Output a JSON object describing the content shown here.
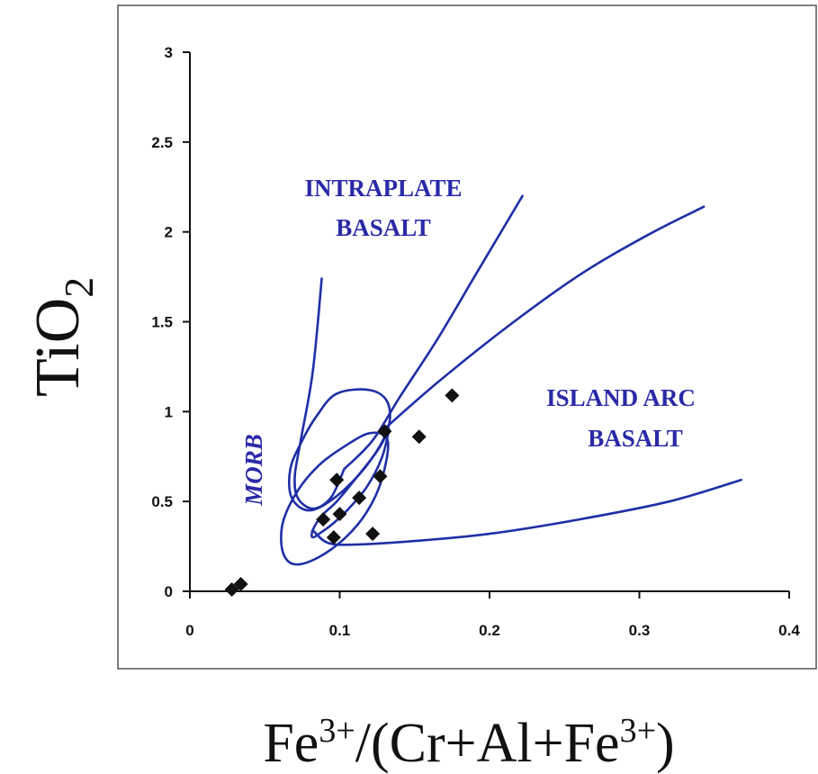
{
  "chart_data": {
    "type": "scatter",
    "xlabel": "Fe3+/(Cr+Al+Fe3+)",
    "xlabel_parts": {
      "a": "Fe",
      "sup1": "3+",
      "b": "/(Cr+Al+Fe",
      "sup2": "3+",
      "c": ")"
    },
    "ylabel": "TiO2",
    "ylabel_parts": {
      "a": "TiO",
      "sub": "2"
    },
    "xlim": [
      0,
      0.4
    ],
    "ylim": [
      0,
      3
    ],
    "x_ticks": [
      "0",
      "0.1",
      "0.2",
      "0.3",
      "0.4"
    ],
    "y_ticks": [
      "0",
      "0.5",
      "1",
      "1.5",
      "2",
      "2.5",
      "3"
    ],
    "grid": false,
    "field_labels": [
      {
        "lines": [
          "INTRAPLATE",
          "BASALT"
        ]
      },
      {
        "lines": [
          "ISLAND ARC",
          "BASALT"
        ]
      },
      {
        "lines": [
          "MORB"
        ]
      }
    ],
    "series": [
      {
        "points": [
          {
            "x": 0.028,
            "y": 0.01
          },
          {
            "x": 0.034,
            "y": 0.04
          },
          {
            "x": 0.089,
            "y": 0.4
          },
          {
            "x": 0.096,
            "y": 0.3
          },
          {
            "x": 0.098,
            "y": 0.62
          },
          {
            "x": 0.1,
            "y": 0.43
          },
          {
            "x": 0.113,
            "y": 0.52
          },
          {
            "x": 0.122,
            "y": 0.32
          },
          {
            "x": 0.127,
            "y": 0.64
          },
          {
            "x": 0.13,
            "y": 0.89
          },
          {
            "x": 0.153,
            "y": 0.86
          },
          {
            "x": 0.175,
            "y": 1.09
          }
        ]
      }
    ],
    "boundaries": [
      {
        "name": "intraplate-ellipse",
        "closed": true,
        "points": [
          [
            0.098,
            1.1
          ],
          [
            0.12,
            1.12
          ],
          [
            0.132,
            1.05
          ],
          [
            0.132,
            0.9
          ],
          [
            0.118,
            0.7
          ],
          [
            0.098,
            0.53
          ],
          [
            0.08,
            0.45
          ],
          [
            0.068,
            0.52
          ],
          [
            0.067,
            0.68
          ],
          [
            0.075,
            0.84
          ],
          [
            0.085,
            0.98
          ]
        ]
      },
      {
        "name": "morb-loop",
        "closed": true,
        "points": [
          [
            0.132,
            0.84
          ],
          [
            0.128,
            0.62
          ],
          [
            0.118,
            0.44
          ],
          [
            0.104,
            0.3
          ],
          [
            0.086,
            0.19
          ],
          [
            0.07,
            0.15
          ],
          [
            0.062,
            0.22
          ],
          [
            0.062,
            0.38
          ],
          [
            0.072,
            0.56
          ],
          [
            0.086,
            0.7
          ],
          [
            0.102,
            0.8
          ],
          [
            0.12,
            0.88
          ]
        ]
      },
      {
        "name": "intraplate-left-arm",
        "closed": false,
        "points": [
          [
            0.088,
            1.74
          ],
          [
            0.082,
            1.22
          ],
          [
            0.074,
            0.84
          ],
          [
            0.07,
            0.64
          ],
          [
            0.072,
            0.52
          ],
          [
            0.082,
            0.46
          ],
          [
            0.094,
            0.52
          ],
          [
            0.103,
            0.68
          ]
        ]
      },
      {
        "name": "intraplate-right-arm",
        "closed": false,
        "points": [
          [
            0.103,
            0.68
          ],
          [
            0.122,
            0.84
          ],
          [
            0.14,
            1.08
          ],
          [
            0.165,
            1.4
          ],
          [
            0.192,
            1.78
          ],
          [
            0.222,
            2.2
          ]
        ]
      },
      {
        "name": "island-arc-upper",
        "closed": false,
        "points": [
          [
            0.132,
            0.92
          ],
          [
            0.165,
            1.16
          ],
          [
            0.21,
            1.46
          ],
          [
            0.26,
            1.76
          ],
          [
            0.305,
            1.98
          ],
          [
            0.343,
            2.14
          ]
        ]
      },
      {
        "name": "inner-loop",
        "closed": false,
        "points": [
          [
            0.133,
            0.9
          ],
          [
            0.128,
            0.74
          ],
          [
            0.118,
            0.58
          ],
          [
            0.106,
            0.46
          ],
          [
            0.096,
            0.38
          ],
          [
            0.088,
            0.33
          ],
          [
            0.082,
            0.3
          ],
          [
            0.082,
            0.34
          ],
          [
            0.088,
            0.42
          ],
          [
            0.098,
            0.5
          ],
          [
            0.11,
            0.62
          ],
          [
            0.125,
            0.78
          ],
          [
            0.133,
            0.9
          ]
        ]
      },
      {
        "name": "island-arc-lower",
        "closed": false,
        "points": [
          [
            0.082,
            0.34
          ],
          [
            0.092,
            0.27
          ],
          [
            0.11,
            0.26
          ],
          [
            0.15,
            0.28
          ],
          [
            0.2,
            0.32
          ],
          [
            0.26,
            0.4
          ],
          [
            0.32,
            0.5
          ],
          [
            0.368,
            0.62
          ]
        ]
      }
    ]
  }
}
